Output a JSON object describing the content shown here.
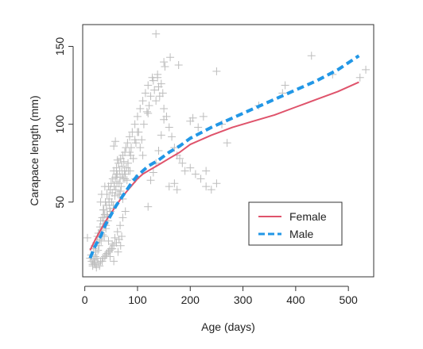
{
  "chart_data": {
    "type": "scatter",
    "title": "",
    "xlabel": "Age (days)",
    "ylabel": "Carapace length (mm)",
    "xlim": [
      -4,
      548
    ],
    "ylim": [
      2,
      164
    ],
    "x_ticks": [
      0,
      100,
      200,
      300,
      400,
      500
    ],
    "y_ticks": [
      50,
      100,
      150
    ],
    "grid": false,
    "legend_position": "bottom-right",
    "point_color": "#bdbdbd",
    "point_marker": "plus",
    "points": {
      "x": [
        5,
        10,
        12,
        13,
        15,
        16,
        17,
        18,
        19,
        20,
        21,
        22,
        23,
        24,
        25,
        26,
        27,
        28,
        29,
        30,
        31,
        32,
        33,
        34,
        35,
        36,
        37,
        38,
        39,
        40,
        41,
        42,
        43,
        44,
        45,
        46,
        47,
        48,
        49,
        50,
        51,
        52,
        53,
        54,
        55,
        56,
        57,
        58,
        59,
        60,
        61,
        62,
        63,
        64,
        65,
        66,
        67,
        68,
        69,
        70,
        71,
        72,
        73,
        74,
        75,
        76,
        77,
        78,
        79,
        80,
        81,
        82,
        83,
        85,
        87,
        88,
        90,
        92,
        95,
        97,
        100,
        102,
        105,
        108,
        110,
        112,
        115,
        118,
        120,
        122,
        125,
        128,
        130,
        132,
        135,
        138,
        140,
        142,
        145,
        148,
        150,
        155,
        160,
        165,
        170,
        175,
        180,
        185,
        190,
        200,
        210,
        220,
        230,
        240,
        250,
        260,
        270,
        15,
        20,
        25,
        30,
        35,
        40,
        45,
        50,
        55,
        60,
        65,
        70,
        22,
        28,
        33,
        38,
        42,
        47,
        52,
        57,
        62,
        67,
        72,
        77,
        26,
        36,
        46,
        56,
        66,
        76,
        86,
        96,
        60,
        55,
        58,
        62,
        68,
        72,
        120,
        125,
        130,
        135,
        140,
        145,
        150,
        160,
        170,
        175,
        135,
        138,
        150,
        152,
        162,
        178,
        200,
        205,
        215,
        225,
        230,
        250,
        330,
        375,
        380,
        430,
        470,
        522,
        533,
        120,
        100,
        95,
        105,
        110,
        85,
        48,
        52,
        45,
        42,
        40,
        55,
        63,
        68,
        35,
        30,
        32,
        38
      ],
      "y": [
        27,
        14,
        16,
        12,
        10,
        20,
        13,
        11,
        22,
        15,
        18,
        24,
        14,
        28,
        19,
        30,
        22,
        26,
        34,
        38,
        25,
        32,
        40,
        29,
        36,
        45,
        28,
        42,
        50,
        35,
        48,
        55,
        41,
        38,
        60,
        52,
        46,
        58,
        44,
        62,
        50,
        56,
        65,
        48,
        70,
        60,
        54,
        66,
        58,
        72,
        63,
        68,
        55,
        75,
        62,
        70,
        66,
        78,
        60,
        73,
        68,
        80,
        65,
        76,
        70,
        82,
        68,
        85,
        72,
        64,
        88,
        75,
        70,
        92,
        80,
        85,
        95,
        78,
        100,
        88,
        105,
        95,
        110,
        90,
        115,
        100,
        120,
        108,
        125,
        112,
        118,
        130,
        128,
        122,
        115,
        132,
        124,
        118,
        126,
        120,
        110,
        105,
        98,
        92,
        85,
        80,
        78,
        75,
        70,
        72,
        68,
        65,
        60,
        58,
        62,
        100,
        88,
        9,
        10,
        11,
        12,
        14,
        16,
        18,
        20,
        22,
        24,
        26,
        28,
        8,
        9,
        12,
        15,
        17,
        19,
        23,
        27,
        31,
        35,
        40,
        44,
        30,
        40,
        50,
        60,
        55,
        65,
        70,
        65,
        68,
        86,
        89,
        77,
        57,
        52,
        47,
        64,
        69,
        75,
        83,
        93,
        103,
        60,
        62,
        58,
        158,
        130,
        140,
        137,
        143,
        138,
        102,
        104,
        98,
        105,
        70,
        134,
        112,
        120,
        125,
        144,
        132,
        130,
        135,
        107,
        95,
        90,
        85,
        80,
        82,
        15,
        20,
        25,
        42,
        33,
        12,
        18,
        22,
        45,
        50,
        55,
        60
      ]
    },
    "series": [
      {
        "name": "Female",
        "color": "#df536b",
        "dash": "solid",
        "x": [
          10,
          20,
          30,
          40,
          50,
          60,
          70,
          80,
          90,
          100,
          110,
          120,
          140,
          160,
          180,
          200,
          240,
          280,
          320,
          360,
          400,
          440,
          480,
          520
        ],
        "y": [
          19,
          26,
          32,
          38,
          43,
          48,
          53,
          57,
          61,
          65,
          68,
          70,
          74,
          78,
          82,
          87,
          93,
          98,
          102,
          106,
          111,
          116,
          121,
          127
        ]
      },
      {
        "name": "Male",
        "color": "#2297e6",
        "dash": "dashed",
        "x": [
          10,
          20,
          30,
          40,
          50,
          60,
          70,
          80,
          90,
          100,
          110,
          120,
          140,
          160,
          180,
          200,
          240,
          280,
          320,
          360,
          400,
          440,
          480,
          520
        ],
        "y": [
          14,
          22,
          28,
          36,
          42,
          48,
          53,
          58,
          63,
          67,
          70,
          73,
          77,
          82,
          86,
          91,
          98,
          104,
          110,
          116,
          122,
          128,
          135,
          144
        ]
      }
    ]
  }
}
